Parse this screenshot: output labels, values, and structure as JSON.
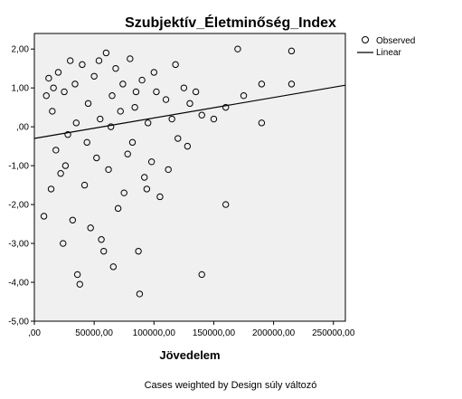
{
  "chart_data": {
    "type": "scatter",
    "title": "Szubjektív_Életminőség_Index",
    "xlabel": "Jövedelem",
    "ylabel": "",
    "footnote": "Cases weighted by Design súly változó",
    "xlim": [
      0,
      260000
    ],
    "ylim": [
      -5,
      2.4
    ],
    "xticks": [
      0,
      50000,
      100000,
      150000,
      200000,
      250000
    ],
    "xtick_labels": [
      ",00",
      "50000,00",
      "100000,00",
      "150000,00",
      "200000,00",
      "250000,00"
    ],
    "yticks": [
      2,
      1,
      0,
      -1,
      -2,
      -3,
      -4,
      -5
    ],
    "ytick_labels": [
      "2,00",
      "1,00",
      ",00",
      "-1,00",
      "-2,00",
      "-3,00",
      "-4,00",
      "-5,00"
    ],
    "legend": {
      "position": "top-right",
      "entries": [
        {
          "label": "Observed",
          "marker": "circle"
        },
        {
          "label": "Linear",
          "marker": "line"
        }
      ]
    },
    "colors": {
      "plot_background": "#f0f0f0",
      "marker_stroke": "#000000",
      "line": "#000000"
    },
    "fit_line": {
      "x": [
        0,
        260000
      ],
      "y": [
        -0.3,
        1.07
      ]
    },
    "series": [
      {
        "name": "Observed",
        "points": [
          [
            12000,
            1.25
          ],
          [
            15000,
            0.4
          ],
          [
            18000,
            -0.6
          ],
          [
            20000,
            1.4
          ],
          [
            22000,
            -1.2
          ],
          [
            25000,
            0.9
          ],
          [
            28000,
            -0.2
          ],
          [
            30000,
            1.7
          ],
          [
            32000,
            -2.4
          ],
          [
            35000,
            0.1
          ],
          [
            36000,
            -3.8
          ],
          [
            38000,
            -4.05
          ],
          [
            40000,
            1.6
          ],
          [
            42000,
            -1.5
          ],
          [
            45000,
            0.6
          ],
          [
            47000,
            -2.6
          ],
          [
            50000,
            1.3
          ],
          [
            52000,
            -0.8
          ],
          [
            55000,
            0.2
          ],
          [
            58000,
            -3.2
          ],
          [
            60000,
            1.9
          ],
          [
            62000,
            -1.1
          ],
          [
            65000,
            0.8
          ],
          [
            66000,
            -3.6
          ],
          [
            68000,
            1.5
          ],
          [
            70000,
            -2.1
          ],
          [
            72000,
            0.4
          ],
          [
            75000,
            -1.7
          ],
          [
            80000,
            1.75
          ],
          [
            82000,
            -0.4
          ],
          [
            85000,
            0.9
          ],
          [
            87000,
            -3.2
          ],
          [
            88000,
            -4.3
          ],
          [
            90000,
            1.2
          ],
          [
            92000,
            -1.3
          ],
          [
            95000,
            0.1
          ],
          [
            98000,
            -0.9
          ],
          [
            100000,
            1.4
          ],
          [
            105000,
            -1.8
          ],
          [
            110000,
            0.7
          ],
          [
            115000,
            0.2
          ],
          [
            120000,
            -0.3
          ],
          [
            125000,
            1.0
          ],
          [
            130000,
            0.6
          ],
          [
            140000,
            -3.8
          ],
          [
            140000,
            0.3
          ],
          [
            160000,
            -2.0
          ],
          [
            160000,
            0.5
          ],
          [
            170000,
            2.0
          ],
          [
            190000,
            1.1
          ],
          [
            190000,
            0.1
          ],
          [
            215000,
            1.1
          ],
          [
            215000,
            1.95
          ],
          [
            8000,
            -2.3
          ],
          [
            10000,
            0.8
          ],
          [
            14000,
            -1.6
          ],
          [
            16000,
            1.0
          ],
          [
            24000,
            -3.0
          ],
          [
            26000,
            -1.0
          ],
          [
            34000,
            1.1
          ],
          [
            44000,
            -0.4
          ],
          [
            54000,
            1.7
          ],
          [
            56000,
            -2.9
          ],
          [
            64000,
            0.0
          ],
          [
            74000,
            1.1
          ],
          [
            78000,
            -0.7
          ],
          [
            84000,
            0.5
          ],
          [
            94000,
            -1.6
          ],
          [
            102000,
            0.9
          ],
          [
            112000,
            -1.1
          ],
          [
            118000,
            1.6
          ],
          [
            128000,
            -0.5
          ],
          [
            135000,
            0.9
          ],
          [
            150000,
            0.2
          ],
          [
            175000,
            0.8
          ]
        ]
      }
    ]
  }
}
